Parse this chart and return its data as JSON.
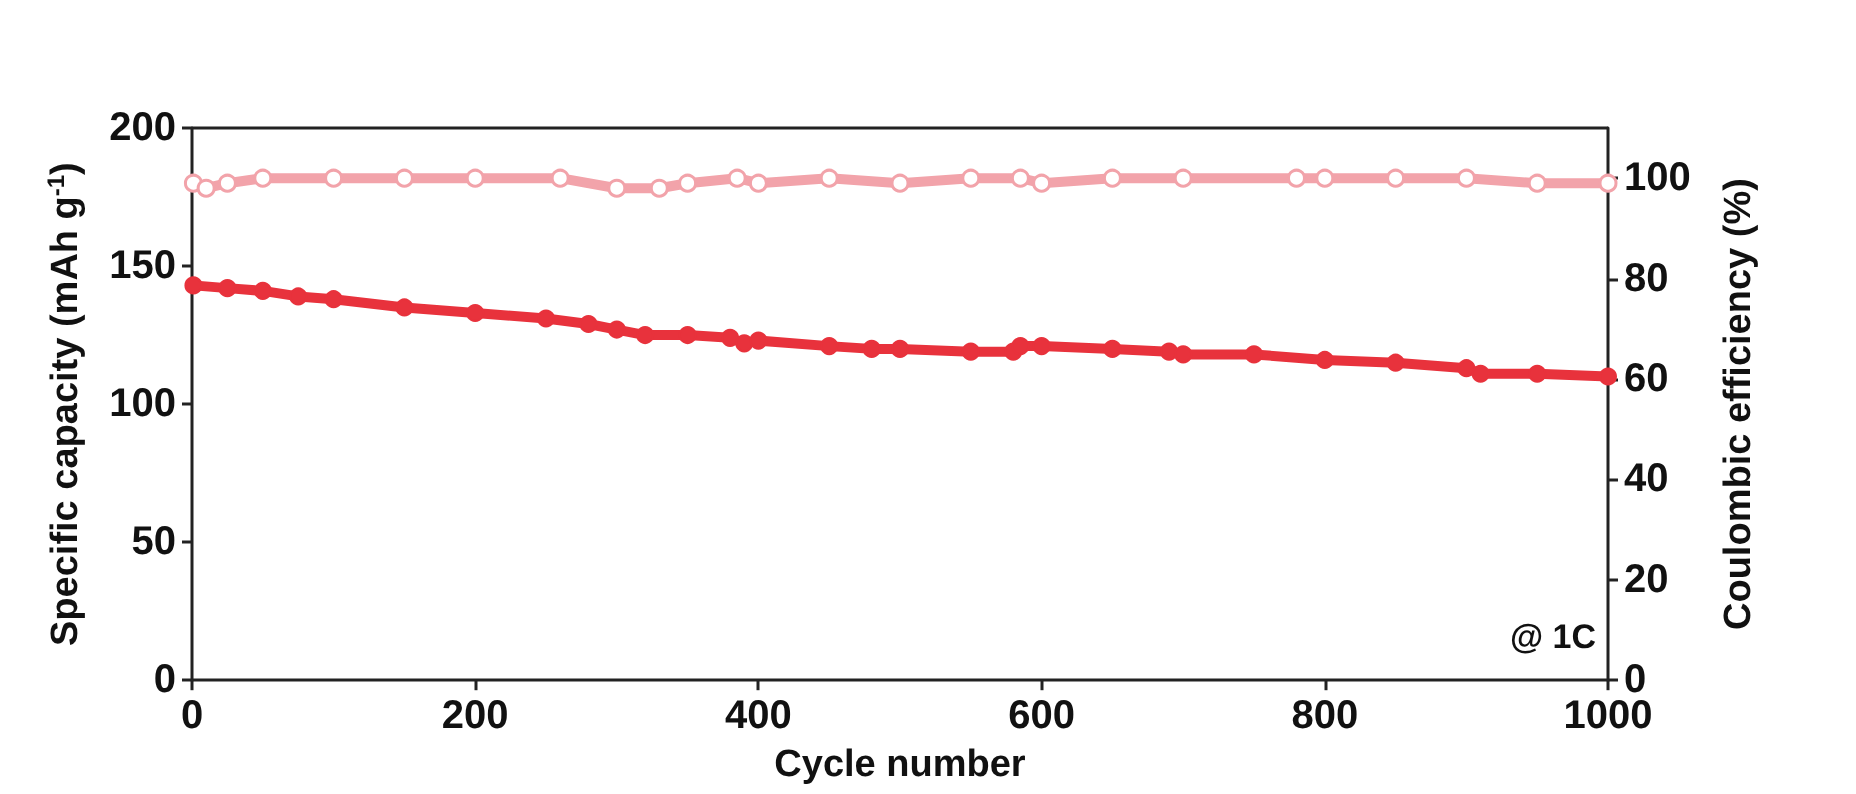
{
  "chart_data": {
    "type": "line",
    "xlabel": "Cycle number",
    "ylabel": "Specific capacity (mAh g$^{-1}$)",
    "y2label": "Coulombic efficiency (%)",
    "xlim": [
      0,
      1000
    ],
    "xticks": [
      0,
      200,
      400,
      600,
      800,
      1000
    ],
    "ylim": [
      0,
      200
    ],
    "yticks": [
      0,
      50,
      100,
      150,
      200
    ],
    "y2lim": [
      0,
      110
    ],
    "y2ticks": [
      0,
      20,
      40,
      60,
      80,
      100
    ],
    "marker": "circle",
    "grid": false,
    "annotations": [
      "@ 1C"
    ],
    "series": [
      {
        "color": "#e8323c",
        "x": [
          1,
          25,
          50,
          75,
          100,
          150,
          200,
          250,
          280,
          300,
          320,
          350,
          380,
          390,
          400,
          450,
          480,
          500,
          550,
          580,
          585,
          600,
          650,
          690,
          700,
          750,
          800,
          850,
          900,
          910,
          950,
          1000
        ],
        "values": [
          143,
          142,
          141,
          139,
          138,
          135,
          133,
          131,
          129,
          127,
          125,
          125,
          124,
          122,
          123,
          121,
          120,
          120,
          119,
          119,
          121,
          121,
          120,
          119,
          118,
          118,
          116,
          115,
          113,
          111,
          111,
          110
        ]
      },
      {
        "color": "#f2a3aa",
        "axis": "y2",
        "x": [
          1,
          10,
          25,
          50,
          100,
          150,
          200,
          260,
          300,
          330,
          350,
          385,
          400,
          450,
          500,
          550,
          585,
          600,
          650,
          700,
          780,
          800,
          850,
          900,
          950,
          1000
        ],
        "values": [
          99,
          98,
          99,
          100,
          100,
          100,
          100,
          100,
          98,
          98,
          99,
          100,
          99,
          100,
          99,
          100,
          100,
          99,
          100,
          100,
          100,
          100,
          100,
          100,
          99,
          99
        ]
      }
    ]
  }
}
